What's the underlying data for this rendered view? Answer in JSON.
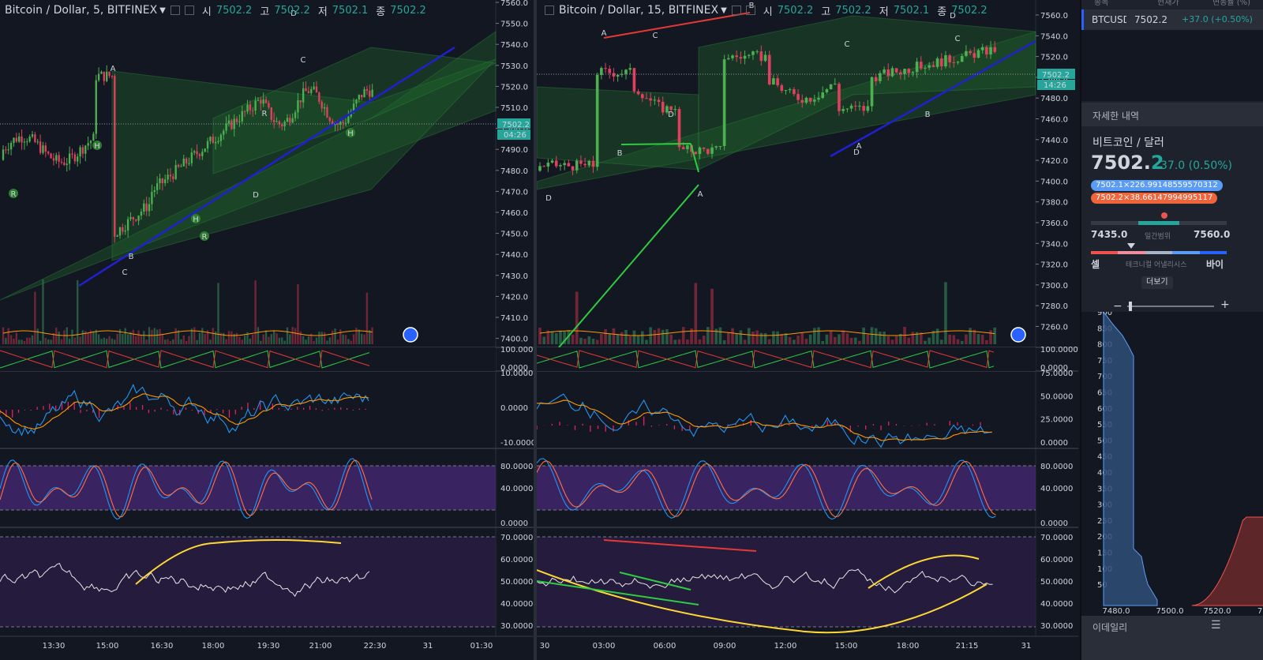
{
  "charts": [
    {
      "header": {
        "symbol": "Bitcoin / Dollar, 5, BITFINEX",
        "o_label": "시",
        "o": "7502.2",
        "h_label": "고",
        "h": "7502.2",
        "l_label": "저",
        "l": "7502.1",
        "c_label": "종",
        "c": "7502.2"
      },
      "price_ticks": [
        "7560.0",
        "7550.0",
        "7540.0",
        "7530.0",
        "7520.0",
        "7510.0",
        "7500.0",
        "7490.0",
        "7480.0",
        "7470.0",
        "7460.0",
        "7450.0",
        "7440.0",
        "7430.0",
        "7420.0",
        "7410.0",
        "7400.0"
      ],
      "price_label": "7502.2",
      "countdown": "04:26",
      "time_ticks": [
        "13:30",
        "15:00",
        "16:30",
        "18:00",
        "19:30",
        "21:00",
        "22:30",
        "31",
        "01:30"
      ],
      "osc1_ticks": [
        "100.0000",
        "0.0000"
      ],
      "macd_ticks": [
        "10.0000",
        "0.0000",
        "-10.0000"
      ],
      "stoch_ticks": [
        "80.0000",
        "40.0000",
        "0.0000"
      ],
      "rsi_ticks": [
        "70.0000",
        "60.0000",
        "50.0000",
        "40.0000",
        "30.0000"
      ],
      "pattern_labels": [
        "A",
        "B",
        "C",
        "D",
        "C",
        "D",
        "H",
        "H",
        "H",
        "R",
        "R",
        "R"
      ]
    },
    {
      "header": {
        "symbol": "Bitcoin / Dollar, 15, BITFINEX",
        "o_label": "시",
        "o": "7502.2",
        "h_label": "고",
        "h": "7502.2",
        "l_label": "저",
        "l": "7502.1",
        "c_label": "종",
        "c": "7502.2"
      },
      "price_ticks": [
        "7560.0",
        "7540.0",
        "7520.0",
        "7500.0",
        "7480.0",
        "7460.0",
        "7440.0",
        "7420.0",
        "7400.0",
        "7380.0",
        "7360.0",
        "7340.0",
        "7320.0",
        "7300.0",
        "7280.0",
        "7260.0"
      ],
      "price_label": "7502.2",
      "countdown": "14:26",
      "time_ticks": [
        "30",
        "03:00",
        "06:00",
        "09:00",
        "12:00",
        "15:00",
        "18:00",
        "21:15",
        "31"
      ],
      "osc1_ticks": [
        "100.0000",
        "0.0000"
      ],
      "macd_ticks": [
        "75.0000",
        "50.0000",
        "25.0000",
        "0.0000"
      ],
      "stoch_ticks": [
        "80.0000",
        "40.0000",
        "0.0000"
      ],
      "rsi_ticks": [
        "70.0000",
        "60.0000",
        "50.0000",
        "40.0000",
        "30.0000"
      ],
      "pattern_labels": [
        "A",
        "B",
        "C",
        "D",
        "A",
        "B",
        "C",
        "D",
        "A",
        "B",
        "C",
        "D",
        "D"
      ]
    }
  ],
  "sidebar": {
    "top_headers": [
      "종목",
      "현재가",
      "변동률 (%)"
    ],
    "watch_symbol": "BTCUSD",
    "watch_price": "7502.2",
    "watch_change": "+37.0 (+0.50%)",
    "details_title": "자세한 내역",
    "pair_name": "비트코인 / 달러",
    "price_main": "7502.",
    "price_last": "2",
    "change": "37.0 (0.50%)",
    "bid_chip": "7502.1×226.99148559570312",
    "ask_chip": "7502.2×38.66147994995117",
    "range_low": "7435.0",
    "range_label": "일간범위",
    "range_high": "7560.0",
    "sell_label": "셀",
    "tech_label": "테크니컬 어낼리시스",
    "buy_label": "바이",
    "more_button": "더보기",
    "depth_y_ticks": [
      "900",
      "850",
      "800",
      "750",
      "700",
      "650",
      "600",
      "550",
      "500",
      "450",
      "400",
      "350",
      "300",
      "250",
      "200",
      "150",
      "100",
      "50"
    ],
    "depth_x_ticks": [
      "7480.0",
      "7500.0",
      "7520.0",
      "7"
    ],
    "bottom_label": "이데일리",
    "colors": {
      "bid": "#5b9cf6",
      "ask": "#ef5350",
      "up": "#26a69a"
    }
  }
}
